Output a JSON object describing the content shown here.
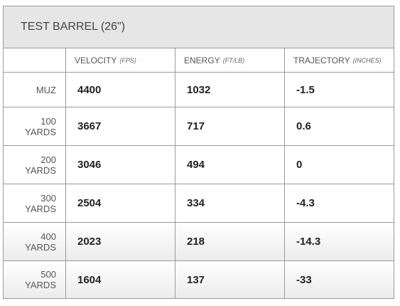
{
  "header": {
    "title": "TEST BARREL (26\")"
  },
  "table": {
    "columns": [
      {
        "name": "VELOCITY",
        "unit": "(FPS)"
      },
      {
        "name": "ENERGY",
        "unit": "(FT/LB)"
      },
      {
        "name": "TRAJECTORY",
        "unit": "(INCHES)"
      }
    ],
    "rows": [
      {
        "label": "MUZ",
        "values": [
          4400,
          1032,
          -1.5
        ]
      },
      {
        "label": "100 YARDS",
        "values": [
          3667,
          717,
          0.6
        ]
      },
      {
        "label": "200 YARDS",
        "values": [
          3046,
          494,
          0
        ]
      },
      {
        "label": "300 YARDS",
        "values": [
          2504,
          334,
          -4.3
        ]
      },
      {
        "label": "400 YARDS",
        "values": [
          2023,
          218,
          -14.3
        ]
      },
      {
        "label": "500 YARDS",
        "values": [
          1604,
          137,
          -33
        ]
      }
    ]
  }
}
